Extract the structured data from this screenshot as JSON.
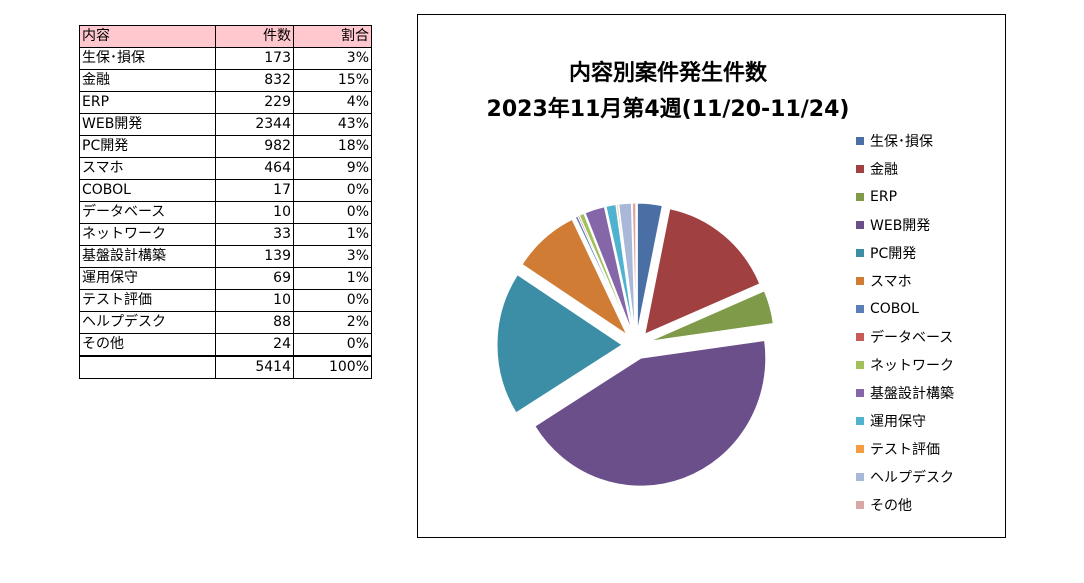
{
  "table": {
    "headers": [
      "内容",
      "件数",
      "割合"
    ],
    "rows": [
      {
        "label": "生保･損保",
        "count": "173",
        "pct": "3%"
      },
      {
        "label": "金融",
        "count": "832",
        "pct": "15%"
      },
      {
        "label": "ERP",
        "count": "229",
        "pct": "4%"
      },
      {
        "label": "WEB開発",
        "count": "2344",
        "pct": "43%"
      },
      {
        "label": "PC開発",
        "count": "982",
        "pct": "18%"
      },
      {
        "label": "スマホ",
        "count": "464",
        "pct": "9%"
      },
      {
        "label": "COBOL",
        "count": "17",
        "pct": "0%"
      },
      {
        "label": "データベース",
        "count": "10",
        "pct": "0%"
      },
      {
        "label": "ネットワーク",
        "count": "33",
        "pct": "1%"
      },
      {
        "label": "基盤設計構築",
        "count": "139",
        "pct": "3%"
      },
      {
        "label": "運用保守",
        "count": "69",
        "pct": "1%"
      },
      {
        "label": "テスト評価",
        "count": "10",
        "pct": "0%"
      },
      {
        "label": "ヘルプデスク",
        "count": "88",
        "pct": "2%"
      },
      {
        "label": "その他",
        "count": "24",
        "pct": "0%"
      }
    ],
    "total": {
      "label": "",
      "count": "5414",
      "pct": "100%"
    }
  },
  "chart_data": {
    "type": "pie",
    "title": "内容別案件発生件数",
    "subtitle": "2023年11月第4週(11/20-11/24)",
    "legend_position": "right",
    "exploded": true,
    "categories": [
      "生保･損保",
      "金融",
      "ERP",
      "WEB開発",
      "PC開発",
      "スマホ",
      "COBOL",
      "データベース",
      "ネットワーク",
      "基盤設計構築",
      "運用保守",
      "テスト評価",
      "ヘルプデスク",
      "その他"
    ],
    "values": [
      173,
      832,
      229,
      2344,
      982,
      464,
      17,
      10,
      33,
      139,
      69,
      10,
      88,
      24
    ],
    "colors": [
      "#4a6fa5",
      "#a04040",
      "#7f9a48",
      "#6b4f8a",
      "#3b8ea5",
      "#d07c34",
      "#5a7fb8",
      "#c85a5a",
      "#a2c05a",
      "#8566a8",
      "#4fb3cf",
      "#f59c42",
      "#a9b8d8",
      "#d9a6a6"
    ]
  }
}
